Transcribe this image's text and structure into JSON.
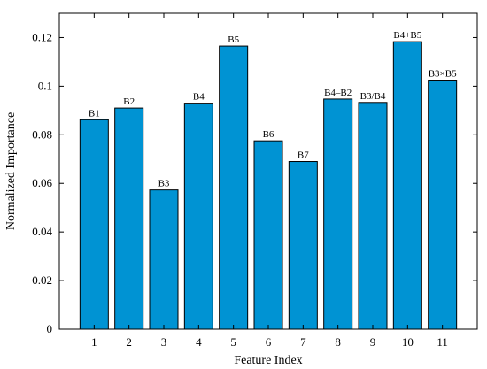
{
  "chart_data": {
    "type": "bar",
    "categories": [
      "1",
      "2",
      "3",
      "4",
      "5",
      "6",
      "7",
      "8",
      "9",
      "10",
      "11"
    ],
    "values": [
      0.0862,
      0.091,
      0.0573,
      0.093,
      0.1165,
      0.0775,
      0.069,
      0.0947,
      0.0933,
      0.1183,
      0.1025
    ],
    "bar_labels": [
      "B1",
      "B2",
      "B3",
      "B4",
      "B5",
      "B6",
      "B7",
      "B4–B2",
      "B3/B4",
      "B4+B5",
      "B3×B5"
    ],
    "xlabel": "Feature Index",
    "ylabel": "Normalized Importance",
    "ylim": [
      0,
      0.13
    ],
    "yticks": [
      0,
      0.02,
      0.04,
      0.06,
      0.08,
      0.1,
      0.12
    ],
    "ytick_labels": [
      "0",
      "0.02",
      "0.04",
      "0.06",
      "0.08",
      "0.1",
      "0.12"
    ],
    "bar_color": "#0093d3",
    "grid": false
  }
}
